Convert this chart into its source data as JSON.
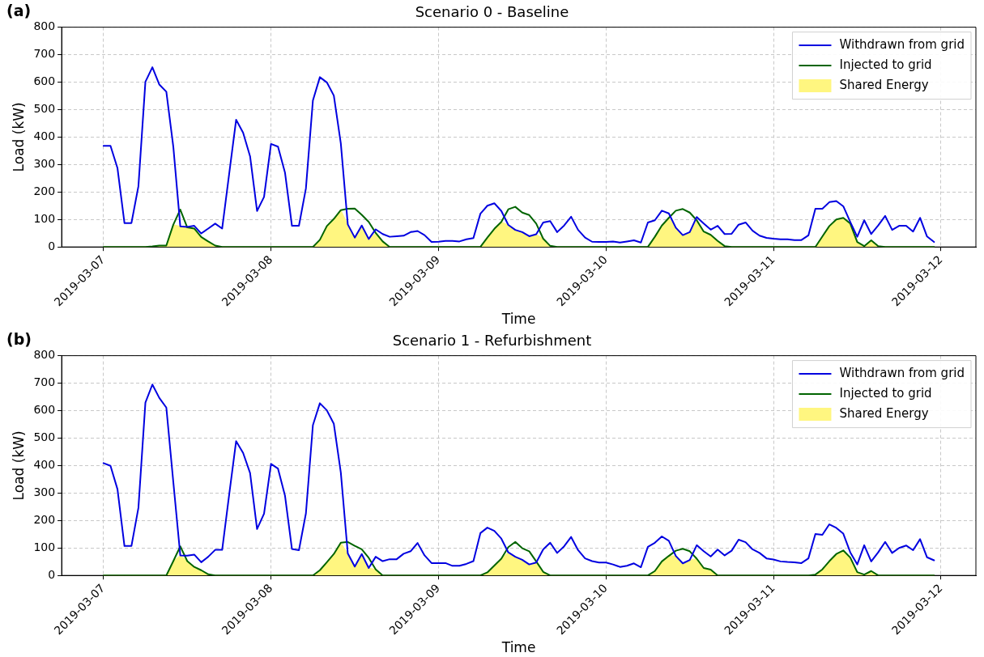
{
  "chart_data": [
    {
      "type": "line",
      "title": "Scenario 0 - Baseline",
      "xlabel": "Time",
      "ylabel": "Load (kW)",
      "annotations": [
        "(a)"
      ],
      "x": [
        "2019-03-07T00:00",
        "2019-03-07T01:00",
        "2019-03-07T02:00",
        "2019-03-07T03:00",
        "2019-03-07T04:00",
        "2019-03-07T05:00",
        "2019-03-07T06:00",
        "2019-03-07T07:00",
        "2019-03-07T08:00",
        "2019-03-07T09:00",
        "2019-03-07T10:00",
        "2019-03-07T11:00",
        "2019-03-07T12:00",
        "2019-03-07T13:00",
        "2019-03-07T14:00",
        "2019-03-07T15:00",
        "2019-03-07T16:00",
        "2019-03-07T17:00",
        "2019-03-07T18:00",
        "2019-03-07T19:00",
        "2019-03-07T20:00",
        "2019-03-07T21:00",
        "2019-03-07T22:00",
        "2019-03-07T23:00",
        "2019-03-08T00:00",
        "2019-03-08T01:00",
        "2019-03-08T02:00",
        "2019-03-08T03:00",
        "2019-03-08T04:00",
        "2019-03-08T05:00",
        "2019-03-08T06:00",
        "2019-03-08T07:00",
        "2019-03-08T08:00",
        "2019-03-08T09:00",
        "2019-03-08T10:00",
        "2019-03-08T11:00",
        "2019-03-08T12:00",
        "2019-03-08T13:00",
        "2019-03-08T14:00",
        "2019-03-08T15:00",
        "2019-03-08T16:00",
        "2019-03-08T17:00",
        "2019-03-08T18:00",
        "2019-03-08T19:00",
        "2019-03-08T20:00",
        "2019-03-08T21:00",
        "2019-03-08T22:00",
        "2019-03-08T23:00",
        "2019-03-09T00:00",
        "2019-03-09T01:00",
        "2019-03-09T02:00",
        "2019-03-09T03:00",
        "2019-03-09T04:00",
        "2019-03-09T05:00",
        "2019-03-09T06:00",
        "2019-03-09T07:00",
        "2019-03-09T08:00",
        "2019-03-09T09:00",
        "2019-03-09T10:00",
        "2019-03-09T11:00",
        "2019-03-09T12:00",
        "2019-03-09T13:00",
        "2019-03-09T14:00",
        "2019-03-09T15:00",
        "2019-03-09T16:00",
        "2019-03-09T17:00",
        "2019-03-09T18:00",
        "2019-03-09T19:00",
        "2019-03-09T20:00",
        "2019-03-09T21:00",
        "2019-03-09T22:00",
        "2019-03-09T23:00",
        "2019-03-10T00:00",
        "2019-03-10T01:00",
        "2019-03-10T02:00",
        "2019-03-10T03:00",
        "2019-03-10T04:00",
        "2019-03-10T05:00",
        "2019-03-10T06:00",
        "2019-03-10T07:00",
        "2019-03-10T08:00",
        "2019-03-10T09:00",
        "2019-03-10T10:00",
        "2019-03-10T11:00",
        "2019-03-10T12:00",
        "2019-03-10T13:00",
        "2019-03-10T14:00",
        "2019-03-10T15:00",
        "2019-03-10T16:00",
        "2019-03-10T17:00",
        "2019-03-10T18:00",
        "2019-03-10T19:00",
        "2019-03-10T20:00",
        "2019-03-10T21:00",
        "2019-03-10T22:00",
        "2019-03-10T23:00",
        "2019-03-11T00:00",
        "2019-03-11T01:00",
        "2019-03-11T02:00",
        "2019-03-11T03:00",
        "2019-03-11T04:00",
        "2019-03-11T05:00",
        "2019-03-11T06:00",
        "2019-03-11T07:00",
        "2019-03-11T08:00",
        "2019-03-11T09:00",
        "2019-03-11T10:00",
        "2019-03-11T11:00",
        "2019-03-11T12:00",
        "2019-03-11T13:00",
        "2019-03-11T14:00",
        "2019-03-11T15:00",
        "2019-03-11T16:00",
        "2019-03-11T17:00",
        "2019-03-11T18:00",
        "2019-03-11T19:00",
        "2019-03-11T20:00",
        "2019-03-11T21:00",
        "2019-03-11T22:00",
        "2019-03-11T23:00"
      ],
      "xlim": [
        "2019-03-06T18:00",
        "2019-03-12T05:00"
      ],
      "xticks": [
        "2019-03-07",
        "2019-03-08",
        "2019-03-09",
        "2019-03-10",
        "2019-03-11",
        "2019-03-12"
      ],
      "ylim": [
        0,
        800
      ],
      "yticks": [
        0,
        100,
        200,
        300,
        400,
        500,
        600,
        700,
        800
      ],
      "grid": true,
      "legend": "top right",
      "series": [
        {
          "name": "Withdrawn from grid",
          "color": "#0000e0",
          "values": [
            368,
            368,
            287,
            87,
            87,
            221,
            601,
            654,
            591,
            565,
            365,
            75,
            73,
            77,
            49,
            67,
            85,
            67,
            265,
            463,
            416,
            330,
            131,
            182,
            375,
            365,
            271,
            77,
            77,
            213,
            533,
            618,
            599,
            551,
            377,
            82,
            34,
            78,
            29,
            64,
            47,
            37,
            39,
            41,
            54,
            58,
            43,
            18,
            19,
            22,
            22,
            20,
            28,
            32,
            121,
            150,
            159,
            131,
            80,
            62,
            54,
            39,
            46,
            89,
            94,
            54,
            78,
            110,
            62,
            34,
            19,
            18,
            18,
            20,
            16,
            20,
            24,
            16,
            89,
            97,
            132,
            122,
            70,
            43,
            54,
            109,
            85,
            63,
            77,
            47,
            48,
            81,
            89,
            59,
            41,
            33,
            30,
            28,
            28,
            25,
            25,
            42,
            139,
            139,
            163,
            167,
            148,
            91,
            37,
            97,
            47,
            78,
            113,
            62,
            77,
            77,
            56,
            106,
            38,
            18
          ]
        },
        {
          "name": "Injected to grid",
          "color": "#006400",
          "values": [
            0,
            0,
            0,
            0,
            0,
            0,
            0,
            2,
            5,
            5,
            81,
            136,
            71,
            67,
            36,
            20,
            5,
            0,
            0,
            0,
            0,
            0,
            0,
            0,
            0,
            0,
            0,
            0,
            0,
            0,
            0,
            26,
            76,
            102,
            134,
            139,
            140,
            117,
            91,
            51,
            20,
            0,
            0,
            0,
            0,
            0,
            0,
            0,
            0,
            0,
            0,
            0,
            0,
            0,
            0,
            34,
            66,
            91,
            137,
            146,
            125,
            116,
            85,
            30,
            4,
            0,
            0,
            0,
            0,
            0,
            0,
            0,
            0,
            0,
            0,
            0,
            0,
            0,
            0,
            37,
            78,
            106,
            132,
            138,
            125,
            97,
            56,
            44,
            22,
            3,
            0,
            0,
            0,
            0,
            0,
            0,
            0,
            0,
            0,
            0,
            0,
            0,
            0,
            38,
            76,
            100,
            106,
            85,
            18,
            3,
            24,
            3,
            0,
            0,
            0,
            0,
            0,
            0,
            0,
            0
          ]
        },
        {
          "name": "Shared Energy",
          "type": "area",
          "color": "#fff680",
          "values": [
            0,
            0,
            0,
            0,
            0,
            0,
            0,
            2,
            5,
            5,
            81,
            75,
            71,
            67,
            36,
            20,
            5,
            0,
            0,
            0,
            0,
            0,
            0,
            0,
            0,
            0,
            0,
            0,
            0,
            0,
            0,
            26,
            76,
            102,
            134,
            82,
            34,
            78,
            29,
            51,
            20,
            0,
            0,
            0,
            0,
            0,
            0,
            0,
            0,
            0,
            0,
            0,
            0,
            0,
            0,
            34,
            66,
            91,
            80,
            62,
            54,
            39,
            46,
            30,
            4,
            0,
            0,
            0,
            0,
            0,
            0,
            0,
            0,
            0,
            0,
            0,
            0,
            0,
            0,
            37,
            78,
            106,
            70,
            43,
            54,
            97,
            56,
            44,
            22,
            3,
            0,
            0,
            0,
            0,
            0,
            0,
            0,
            0,
            0,
            0,
            0,
            0,
            0,
            38,
            76,
            100,
            106,
            85,
            18,
            3,
            24,
            3,
            0,
            0,
            0,
            0,
            0,
            0,
            0,
            0
          ]
        }
      ]
    },
    {
      "type": "line",
      "title": "Scenario 1 - Refurbishment",
      "xlabel": "Time",
      "ylabel": "Load (kW)",
      "annotations": [
        "(b)"
      ],
      "x": [
        "2019-03-07T00:00",
        "2019-03-07T01:00",
        "2019-03-07T02:00",
        "2019-03-07T03:00",
        "2019-03-07T04:00",
        "2019-03-07T05:00",
        "2019-03-07T06:00",
        "2019-03-07T07:00",
        "2019-03-07T08:00",
        "2019-03-07T09:00",
        "2019-03-07T10:00",
        "2019-03-07T11:00",
        "2019-03-07T12:00",
        "2019-03-07T13:00",
        "2019-03-07T14:00",
        "2019-03-07T15:00",
        "2019-03-07T16:00",
        "2019-03-07T17:00",
        "2019-03-07T18:00",
        "2019-03-07T19:00",
        "2019-03-07T20:00",
        "2019-03-07T21:00",
        "2019-03-07T22:00",
        "2019-03-07T23:00",
        "2019-03-08T00:00",
        "2019-03-08T01:00",
        "2019-03-08T02:00",
        "2019-03-08T03:00",
        "2019-03-08T04:00",
        "2019-03-08T05:00",
        "2019-03-08T06:00",
        "2019-03-08T07:00",
        "2019-03-08T08:00",
        "2019-03-08T09:00",
        "2019-03-08T10:00",
        "2019-03-08T11:00",
        "2019-03-08T12:00",
        "2019-03-08T13:00",
        "2019-03-08T14:00",
        "2019-03-08T15:00",
        "2019-03-08T16:00",
        "2019-03-08T17:00",
        "2019-03-08T18:00",
        "2019-03-08T19:00",
        "2019-03-08T20:00",
        "2019-03-08T21:00",
        "2019-03-08T22:00",
        "2019-03-08T23:00",
        "2019-03-09T00:00",
        "2019-03-09T01:00",
        "2019-03-09T02:00",
        "2019-03-09T03:00",
        "2019-03-09T04:00",
        "2019-03-09T05:00",
        "2019-03-09T06:00",
        "2019-03-09T07:00",
        "2019-03-09T08:00",
        "2019-03-09T09:00",
        "2019-03-09T10:00",
        "2019-03-09T11:00",
        "2019-03-09T12:00",
        "2019-03-09T13:00",
        "2019-03-09T14:00",
        "2019-03-09T15:00",
        "2019-03-09T16:00",
        "2019-03-09T17:00",
        "2019-03-09T18:00",
        "2019-03-09T19:00",
        "2019-03-09T20:00",
        "2019-03-09T21:00",
        "2019-03-09T22:00",
        "2019-03-09T23:00",
        "2019-03-10T00:00",
        "2019-03-10T01:00",
        "2019-03-10T02:00",
        "2019-03-10T03:00",
        "2019-03-10T04:00",
        "2019-03-10T05:00",
        "2019-03-10T06:00",
        "2019-03-10T07:00",
        "2019-03-10T08:00",
        "2019-03-10T09:00",
        "2019-03-10T10:00",
        "2019-03-10T11:00",
        "2019-03-10T12:00",
        "2019-03-10T13:00",
        "2019-03-10T14:00",
        "2019-03-10T15:00",
        "2019-03-10T16:00",
        "2019-03-10T17:00",
        "2019-03-10T18:00",
        "2019-03-10T19:00",
        "2019-03-10T20:00",
        "2019-03-10T21:00",
        "2019-03-10T22:00",
        "2019-03-10T23:00",
        "2019-03-11T00:00",
        "2019-03-11T01:00",
        "2019-03-11T02:00",
        "2019-03-11T03:00",
        "2019-03-11T04:00",
        "2019-03-11T05:00",
        "2019-03-11T06:00",
        "2019-03-11T07:00",
        "2019-03-11T08:00",
        "2019-03-11T09:00",
        "2019-03-11T10:00",
        "2019-03-11T11:00",
        "2019-03-11T12:00",
        "2019-03-11T13:00",
        "2019-03-11T14:00",
        "2019-03-11T15:00",
        "2019-03-11T16:00",
        "2019-03-11T17:00",
        "2019-03-11T18:00",
        "2019-03-11T19:00",
        "2019-03-11T20:00",
        "2019-03-11T21:00",
        "2019-03-11T22:00",
        "2019-03-11T23:00"
      ],
      "xlim": [
        "2019-03-06T18:00",
        "2019-03-12T05:00"
      ],
      "xticks": [
        "2019-03-07",
        "2019-03-08",
        "2019-03-09",
        "2019-03-10",
        "2019-03-11",
        "2019-03-12"
      ],
      "ylim": [
        0,
        800
      ],
      "yticks": [
        0,
        100,
        200,
        300,
        400,
        500,
        600,
        700,
        800
      ],
      "grid": true,
      "legend": "top right",
      "series": [
        {
          "name": "Withdrawn from grid",
          "color": "#0000e0",
          "values": [
            409,
            399,
            314,
            107,
            107,
            246,
            629,
            695,
            646,
            611,
            340,
            73,
            72,
            76,
            48,
            68,
            93,
            93,
            293,
            489,
            446,
            373,
            169,
            225,
            406,
            389,
            291,
            96,
            92,
            226,
            547,
            627,
            601,
            552,
            375,
            80,
            32,
            78,
            27,
            68,
            52,
            59,
            59,
            79,
            88,
            118,
            73,
            45,
            45,
            45,
            35,
            35,
            42,
            52,
            154,
            174,
            162,
            134,
            84,
            68,
            57,
            40,
            47,
            95,
            119,
            82,
            106,
            140,
            92,
            62,
            52,
            47,
            47,
            40,
            31,
            35,
            44,
            30,
            104,
            119,
            142,
            126,
            71,
            44,
            56,
            110,
            88,
            69,
            94,
            73,
            90,
            130,
            121,
            95,
            82,
            62,
            58,
            51,
            49,
            48,
            45,
            62,
            151,
            148,
            186,
            173,
            152,
            84,
            40,
            110,
            51,
            84,
            122,
            82,
            100,
            109,
            92,
            132,
            66,
            55
          ]
        },
        {
          "name": "Injected to grid",
          "color": "#006400",
          "values": [
            0,
            0,
            0,
            0,
            0,
            0,
            0,
            0,
            0,
            0,
            52,
            106,
            52,
            31,
            19,
            4,
            0,
            0,
            0,
            0,
            0,
            0,
            0,
            0,
            0,
            0,
            0,
            0,
            0,
            0,
            0,
            19,
            48,
            78,
            119,
            122,
            108,
            95,
            64,
            22,
            0,
            0,
            0,
            0,
            0,
            0,
            0,
            0,
            0,
            0,
            0,
            0,
            0,
            0,
            0,
            11,
            36,
            61,
            103,
            122,
            99,
            88,
            51,
            13,
            0,
            0,
            0,
            0,
            0,
            0,
            0,
            0,
            0,
            0,
            0,
            0,
            0,
            0,
            0,
            16,
            51,
            71,
            90,
            97,
            88,
            61,
            27,
            21,
            0,
            0,
            0,
            0,
            0,
            0,
            0,
            0,
            0,
            0,
            0,
            0,
            0,
            0,
            3,
            22,
            52,
            78,
            91,
            65,
            12,
            3,
            16,
            0,
            0,
            0,
            0,
            0,
            0,
            0,
            0,
            0
          ]
        },
        {
          "name": "Shared Energy",
          "type": "area",
          "color": "#fff680",
          "values": [
            0,
            0,
            0,
            0,
            0,
            0,
            0,
            0,
            0,
            0,
            52,
            73,
            52,
            31,
            19,
            4,
            0,
            0,
            0,
            0,
            0,
            0,
            0,
            0,
            0,
            0,
            0,
            0,
            0,
            0,
            0,
            19,
            48,
            78,
            119,
            80,
            32,
            78,
            27,
            22,
            0,
            0,
            0,
            0,
            0,
            0,
            0,
            0,
            0,
            0,
            0,
            0,
            0,
            0,
            0,
            11,
            36,
            61,
            84,
            68,
            57,
            40,
            47,
            13,
            0,
            0,
            0,
            0,
            0,
            0,
            0,
            0,
            0,
            0,
            0,
            0,
            0,
            0,
            0,
            16,
            51,
            71,
            71,
            44,
            56,
            61,
            27,
            21,
            0,
            0,
            0,
            0,
            0,
            0,
            0,
            0,
            0,
            0,
            0,
            0,
            0,
            0,
            3,
            22,
            52,
            78,
            91,
            65,
            12,
            3,
            16,
            0,
            0,
            0,
            0,
            0,
            0,
            0,
            0,
            0
          ]
        }
      ]
    }
  ]
}
